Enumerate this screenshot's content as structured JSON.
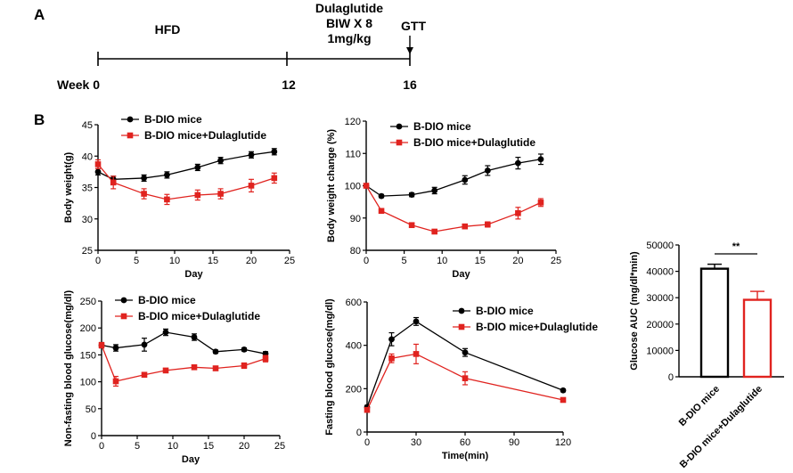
{
  "panel_labels": [
    "A",
    "B"
  ],
  "timeline": {
    "phase1": "HFD",
    "treatment_lines": [
      "Dulaglutide",
      "BIW X 8",
      "1mg/kg"
    ],
    "test": "GTT",
    "week_labels": [
      "Week 0",
      "12",
      "16"
    ]
  },
  "colors": {
    "control": "#000000",
    "treated": "#e0231f"
  },
  "chart_data": [
    {
      "id": "body_weight",
      "type": "line",
      "xlabel": "Day",
      "ylabel": "Body weight(g)",
      "xlim": [
        0,
        25
      ],
      "ylim": [
        25,
        45
      ],
      "xticks": [
        0,
        5,
        10,
        15,
        20,
        25
      ],
      "yticks": [
        25,
        30,
        35,
        40,
        45
      ],
      "legend": "top-left",
      "x": [
        0,
        2,
        6,
        9,
        13,
        16,
        20,
        23
      ],
      "series": [
        {
          "name": "B-DIO mice",
          "color": "#000000",
          "marker": "circle",
          "values": [
            37.5,
            36.3,
            36.5,
            37.0,
            38.2,
            39.3,
            40.2,
            40.7
          ],
          "errors": [
            0.5,
            0.5,
            0.5,
            0.5,
            0.5,
            0.5,
            0.5,
            0.5
          ]
        },
        {
          "name": "B-DIO mice+Dulaglutide",
          "color": "#e0231f",
          "marker": "square",
          "values": [
            38.7,
            35.8,
            34.0,
            33.1,
            33.8,
            34.0,
            35.3,
            36.5
          ],
          "errors": [
            0.7,
            1.0,
            0.8,
            0.8,
            0.8,
            0.8,
            1.0,
            0.8
          ]
        }
      ]
    },
    {
      "id": "body_weight_change",
      "type": "line",
      "xlabel": "Day",
      "ylabel": "Body weight change (%)",
      "xlim": [
        0,
        25
      ],
      "ylim": [
        80,
        120
      ],
      "xticks": [
        0,
        5,
        10,
        15,
        20,
        25
      ],
      "yticks": [
        80,
        90,
        100,
        110,
        120
      ],
      "legend": "top-left",
      "x": [
        0,
        2,
        6,
        9,
        13,
        16,
        20,
        23
      ],
      "series": [
        {
          "name": "B-DIO mice",
          "color": "#000000",
          "marker": "circle",
          "values": [
            100,
            96.8,
            97.2,
            98.5,
            101.8,
            104.7,
            107.0,
            108.2
          ],
          "errors": [
            0.3,
            0.5,
            0.6,
            1.0,
            1.3,
            1.5,
            1.8,
            1.6
          ]
        },
        {
          "name": "B-DIO mice+Dulaglutide",
          "color": "#e0231f",
          "marker": "square",
          "values": [
            100,
            92.2,
            87.8,
            85.8,
            87.4,
            88.0,
            91.5,
            94.8
          ],
          "errors": [
            0.3,
            0.5,
            0.6,
            0.6,
            0.6,
            0.8,
            1.8,
            1.2
          ]
        }
      ]
    },
    {
      "id": "nonfasting_glucose",
      "type": "line",
      "xlabel": "Day",
      "ylabel": "Non-fasting blood glucose(mg/dl)",
      "xlim": [
        0,
        25
      ],
      "ylim": [
        0,
        250
      ],
      "xticks": [
        0,
        5,
        10,
        15,
        20,
        25
      ],
      "yticks": [
        0,
        50,
        100,
        150,
        200,
        250
      ],
      "legend": "top-left",
      "x": [
        0,
        2,
        6,
        9,
        13,
        16,
        20,
        23
      ],
      "series": [
        {
          "name": "B-DIO mice",
          "color": "#000000",
          "marker": "circle",
          "values": [
            168,
            163,
            169,
            192,
            183,
            156,
            160,
            152
          ],
          "errors": [
            5,
            6,
            12,
            6,
            6,
            3,
            3,
            4
          ]
        },
        {
          "name": "B-DIO mice+Dulaglutide",
          "color": "#e0231f",
          "marker": "square",
          "values": [
            168,
            101,
            113,
            121,
            127,
            125,
            130,
            143
          ],
          "errors": [
            5,
            9,
            4,
            4,
            4,
            4,
            5,
            6
          ]
        }
      ]
    },
    {
      "id": "gtt",
      "type": "line",
      "xlabel": "Time(min)",
      "ylabel": "Fasting blood glucose(mg/dl)",
      "xlim": [
        0,
        120
      ],
      "ylim": [
        0,
        600
      ],
      "xticks": [
        0,
        30,
        60,
        90,
        120
      ],
      "yticks": [
        0,
        200,
        400,
        600
      ],
      "legend": "top-right",
      "x": [
        0,
        15,
        30,
        60,
        120
      ],
      "series": [
        {
          "name": "B-DIO mice",
          "color": "#000000",
          "marker": "circle",
          "values": [
            115,
            428,
            510,
            367,
            192
          ],
          "errors": [
            8,
            30,
            18,
            18,
            6
          ]
        },
        {
          "name": "B-DIO mice+Dulaglutide",
          "color": "#e0231f",
          "marker": "square",
          "values": [
            102,
            340,
            360,
            248,
            148
          ],
          "errors": [
            8,
            20,
            45,
            30,
            6
          ]
        }
      ]
    },
    {
      "id": "auc",
      "type": "bar",
      "ylabel": "Glucose AUC (mg/dl*min)",
      "ylim": [
        0,
        50000
      ],
      "yticks": [
        0,
        10000,
        20000,
        30000,
        40000,
        50000
      ],
      "categories": [
        "B-DIO mice",
        "B-DIO mice+Dulaglutide"
      ],
      "values": [
        41000,
        29200
      ],
      "errors": [
        1700,
        3200
      ],
      "colors": [
        "#000000",
        "#e0231f"
      ],
      "significance": "**"
    }
  ]
}
